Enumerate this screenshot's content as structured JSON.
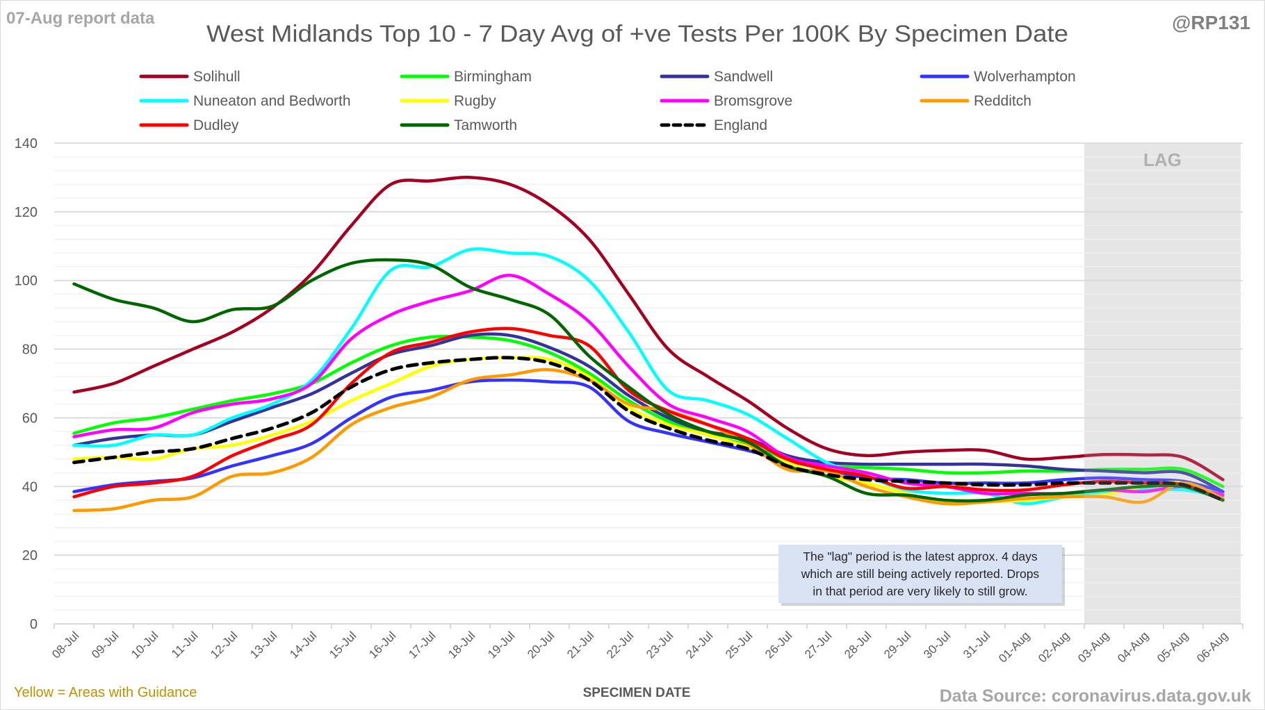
{
  "header": {
    "report_label": "07-Aug report data",
    "handle": "@RP131"
  },
  "footer": {
    "guidance_note": "Yellow = Areas with Guidance",
    "source": "Data Source: coronavirus.data.gov.uk"
  },
  "annotation": {
    "lag_label": "LAG",
    "lag_note_lines": [
      "The \"lag\" period is the latest approx. 4 days",
      "which are still being actively reported.  Drops",
      "in that period are very likely to still grow."
    ]
  },
  "chart_data": {
    "type": "line",
    "title": "West Midlands Top 10 - 7 Day Avg of +ve Tests Per 100K By Specimen Date",
    "xlabel": "SPECIMEN DATE",
    "ylabel": "",
    "ylim": [
      0,
      140
    ],
    "y_major_step": 20,
    "y_minor_step": 4,
    "y_ticks": [
      "0",
      "20",
      "40",
      "60",
      "80",
      "100",
      "120",
      "140"
    ],
    "grid": true,
    "legend_position": "top",
    "lag_region": {
      "from": "03-Aug",
      "to": "06-Aug"
    },
    "categories": [
      "08-Jul",
      "09-Jul",
      "10-Jul",
      "11-Jul",
      "12-Jul",
      "13-Jul",
      "14-Jul",
      "15-Jul",
      "16-Jul",
      "17-Jul",
      "18-Jul",
      "19-Jul",
      "20-Jul",
      "21-Jul",
      "22-Jul",
      "23-Jul",
      "24-Jul",
      "25-Jul",
      "26-Jul",
      "27-Jul",
      "28-Jul",
      "29-Jul",
      "30-Jul",
      "31-Jul",
      "01-Aug",
      "02-Aug",
      "03-Aug",
      "04-Aug",
      "05-Aug",
      "06-Aug"
    ],
    "series": [
      {
        "name": "Solihull",
        "color": "#a50021",
        "dashed": false,
        "values": [
          67.5,
          70,
          75,
          80,
          85,
          92,
          102,
          116,
          128,
          129,
          130,
          128,
          122,
          112,
          96,
          80,
          72,
          65,
          57,
          51,
          49,
          50,
          50.5,
          50.5,
          48,
          48.5,
          49.3,
          49.2,
          48.5,
          42
        ]
      },
      {
        "name": "Birmingham",
        "color": "#00ff00",
        "dashed": false,
        "values": [
          55.5,
          58.5,
          60,
          62.5,
          65,
          67,
          70,
          76,
          81,
          83.5,
          83.5,
          82.5,
          79,
          73,
          65,
          59,
          55,
          52,
          48,
          46,
          45.5,
          45,
          44,
          44,
          44.5,
          44.5,
          45,
          45,
          45,
          40
        ]
      },
      {
        "name": "Sandwell",
        "color": "#333399",
        "dashed": false,
        "values": [
          52,
          54,
          55,
          55,
          59,
          63,
          67,
          73,
          78.5,
          81,
          84,
          84,
          80.5,
          75,
          66.5,
          60,
          56,
          54,
          49,
          47,
          46.5,
          46.5,
          46.5,
          46.5,
          46,
          45,
          44.5,
          44,
          44,
          38.5
        ]
      },
      {
        "name": "Wolverhampton",
        "color": "#3333ff",
        "dashed": false,
        "values": [
          38.5,
          40.5,
          41.5,
          42.5,
          46,
          49,
          52.5,
          60,
          66,
          68,
          70.5,
          71,
          70.5,
          69,
          59,
          55.5,
          53,
          50.5,
          47.5,
          45,
          42.5,
          42,
          41,
          41,
          41,
          42,
          42.5,
          42,
          41.5,
          38.5
        ]
      },
      {
        "name": "Nuneaton and Bedworth",
        "color": "#00ffff",
        "dashed": false,
        "values": [
          52,
          52,
          55,
          55,
          60,
          64,
          71,
          86,
          103,
          104,
          109,
          108,
          107,
          100,
          85,
          68,
          65,
          61,
          54,
          47,
          43,
          39,
          38,
          38,
          35,
          37,
          38.5,
          39,
          39,
          37
        ]
      },
      {
        "name": "Rugby",
        "color": "#ffff00",
        "dashed": false,
        "values": [
          48,
          48.5,
          48,
          51,
          52,
          55,
          59,
          65,
          70,
          75,
          77,
          77.5,
          77,
          72,
          63,
          58,
          55,
          51.5,
          47,
          43,
          41,
          38,
          35,
          35.5,
          36,
          37,
          37.5,
          40,
          41,
          36
        ]
      },
      {
        "name": "Bromsgrove",
        "color": "#ff00ff",
        "dashed": false,
        "values": [
          54.5,
          56.5,
          57,
          61.5,
          64,
          65.5,
          70,
          83,
          90,
          94,
          97,
          101.5,
          96,
          88,
          75,
          64,
          60,
          56,
          48.5,
          46,
          44,
          41,
          40,
          38,
          38,
          38,
          39,
          38.5,
          40,
          37.5
        ]
      },
      {
        "name": "Redditch",
        "color": "#ff9900",
        "dashed": false,
        "values": [
          33,
          33.5,
          36,
          37,
          43,
          44,
          48.5,
          58,
          63,
          66,
          71,
          72.5,
          74,
          71,
          64,
          62,
          58,
          52.5,
          45,
          44.5,
          40,
          37,
          35,
          35.5,
          36.5,
          37,
          37,
          35.5,
          41,
          36.5
        ]
      },
      {
        "name": "Dudley",
        "color": "#ff0000",
        "dashed": false,
        "values": [
          37,
          40,
          41,
          43,
          49,
          53.5,
          58,
          70,
          79,
          82,
          85,
          86,
          84,
          81,
          68,
          62,
          58,
          54,
          48,
          45,
          43,
          39.5,
          40,
          39,
          39,
          40.5,
          41.5,
          41,
          40.5,
          36
        ]
      },
      {
        "name": "Tamworth",
        "color": "#006600",
        "dashed": false,
        "values": [
          99,
          94.5,
          92,
          88,
          91.5,
          92.5,
          100,
          105,
          106,
          104.5,
          98,
          94.5,
          90,
          78,
          69,
          61,
          56,
          53,
          46,
          43,
          38,
          37.5,
          36,
          36,
          37.5,
          38,
          39,
          40,
          40,
          36
        ]
      },
      {
        "name": "England",
        "color": "#000000",
        "dashed": true,
        "values": [
          47,
          48.5,
          50,
          51,
          54,
          57,
          61.5,
          69,
          74,
          76,
          77,
          77.5,
          76,
          71,
          62,
          57,
          53.5,
          51,
          46,
          43.5,
          42,
          41.5,
          41,
          40.5,
          40.5,
          41,
          41,
          41,
          40.5,
          36
        ]
      }
    ]
  }
}
